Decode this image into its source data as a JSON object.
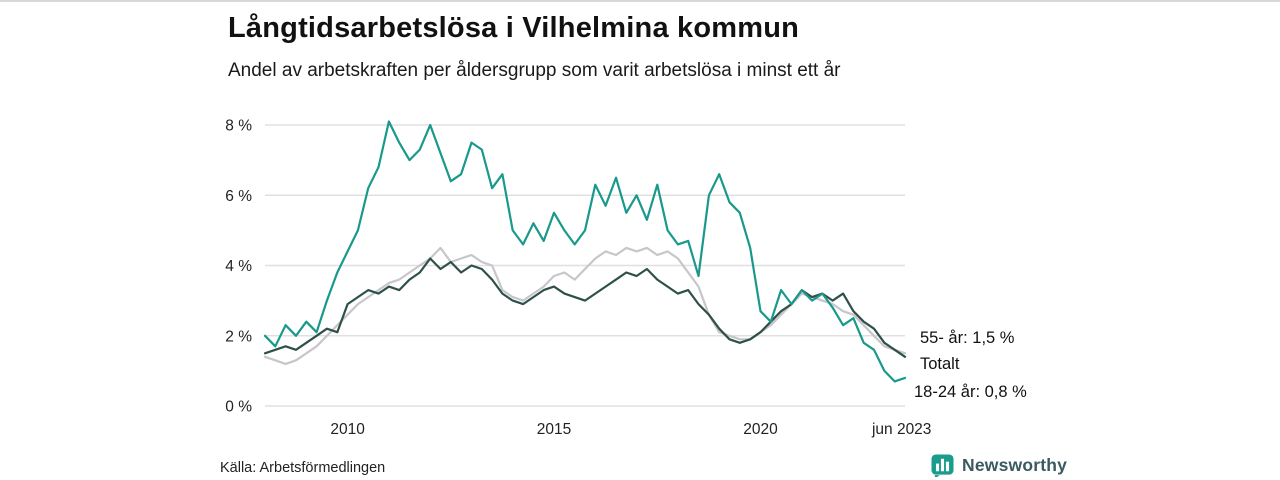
{
  "header": {
    "title": "Långtidsarbetslösa i Vilhelmina kommun",
    "subtitle": "Andel av arbetskraften per åldersgrupp som varit arbetslösa i minst ett år"
  },
  "footer": {
    "source": "Källa: Arbetsförmedlingen",
    "brand": "Newsworthy",
    "brand_color": "#1a9c8c",
    "brand_text_color": "#3b5a60"
  },
  "chart_data": {
    "type": "line",
    "title": "Långtidsarbetslösa i Vilhelmina kommun",
    "subtitle": "Andel av arbetskraften per åldersgrupp som varit arbetslösa i minst ett år",
    "xlabel": "",
    "ylabel": "",
    "xlim": [
      2008,
      2023.5
    ],
    "ylim": [
      0,
      8
    ],
    "grid": "horizontal",
    "legend_position": "end-of-line-labels",
    "yticks": [
      {
        "value": 0,
        "label": "0 %"
      },
      {
        "value": 2,
        "label": "2 %"
      },
      {
        "value": 4,
        "label": "4 %"
      },
      {
        "value": 6,
        "label": "6 %"
      },
      {
        "value": 8,
        "label": "8 %"
      }
    ],
    "xticks": [
      {
        "value": 2010,
        "label": "2010"
      },
      {
        "value": 2015,
        "label": "2015"
      },
      {
        "value": 2020,
        "label": "2020"
      },
      {
        "value": 2023.42,
        "label": "jun 2023"
      }
    ],
    "x": [
      2008,
      2008.25,
      2008.5,
      2008.75,
      2009,
      2009.25,
      2009.5,
      2009.75,
      2010,
      2010.25,
      2010.5,
      2010.75,
      2011,
      2011.25,
      2011.5,
      2011.75,
      2012,
      2012.25,
      2012.5,
      2012.75,
      2013,
      2013.25,
      2013.5,
      2013.75,
      2014,
      2014.25,
      2014.5,
      2014.75,
      2015,
      2015.25,
      2015.5,
      2015.75,
      2016,
      2016.25,
      2016.5,
      2016.75,
      2017,
      2017.25,
      2017.5,
      2017.75,
      2018,
      2018.25,
      2018.5,
      2018.75,
      2019,
      2019.25,
      2019.5,
      2019.75,
      2020,
      2020.25,
      2020.5,
      2020.75,
      2021,
      2021.25,
      2021.5,
      2021.75,
      2022,
      2022.25,
      2022.5,
      2022.75,
      2023,
      2023.25,
      2023.5
    ],
    "series": [
      {
        "name": "55- år",
        "color": "#c6c6cb",
        "end_value": "1,5 %",
        "values": [
          1.4,
          1.3,
          1.2,
          1.3,
          1.5,
          1.7,
          2.0,
          2.3,
          2.6,
          2.9,
          3.1,
          3.3,
          3.5,
          3.6,
          3.8,
          4.0,
          4.2,
          4.5,
          4.1,
          4.2,
          4.3,
          4.1,
          4.0,
          3.3,
          3.1,
          3.0,
          3.2,
          3.4,
          3.7,
          3.8,
          3.6,
          3.9,
          4.2,
          4.4,
          4.3,
          4.5,
          4.4,
          4.5,
          4.3,
          4.4,
          4.2,
          3.8,
          3.4,
          2.6,
          2.1,
          2.0,
          1.9,
          1.9,
          2.1,
          2.3,
          2.6,
          2.9,
          3.2,
          3.1,
          3.0,
          2.9,
          2.7,
          2.6,
          2.3,
          2.0,
          1.7,
          1.6,
          1.5
        ]
      },
      {
        "name": "Totalt",
        "color": "#2f5049",
        "end_value": "",
        "values": [
          1.5,
          1.6,
          1.7,
          1.6,
          1.8,
          2.0,
          2.2,
          2.1,
          2.9,
          3.1,
          3.3,
          3.2,
          3.4,
          3.3,
          3.6,
          3.8,
          4.2,
          3.9,
          4.1,
          3.8,
          4.0,
          3.9,
          3.6,
          3.2,
          3.0,
          2.9,
          3.1,
          3.3,
          3.4,
          3.2,
          3.1,
          3.0,
          3.2,
          3.4,
          3.6,
          3.8,
          3.7,
          3.9,
          3.6,
          3.4,
          3.2,
          3.3,
          2.9,
          2.6,
          2.2,
          1.9,
          1.8,
          1.9,
          2.1,
          2.4,
          2.7,
          2.9,
          3.3,
          3.1,
          3.2,
          3.0,
          3.2,
          2.7,
          2.4,
          2.2,
          1.8,
          1.6,
          1.4
        ]
      },
      {
        "name": "18-24 år",
        "color": "#18998b",
        "end_value": "0,8 %",
        "values": [
          2.0,
          1.7,
          2.3,
          2.0,
          2.4,
          2.1,
          3.0,
          3.8,
          4.4,
          5.0,
          6.2,
          6.8,
          8.1,
          7.5,
          7.0,
          7.3,
          8.0,
          7.2,
          6.4,
          6.6,
          7.5,
          7.3,
          6.2,
          6.6,
          5.0,
          4.6,
          5.2,
          4.7,
          5.5,
          5.0,
          4.6,
          5.0,
          6.3,
          5.7,
          6.5,
          5.5,
          6.0,
          5.3,
          6.3,
          5.0,
          4.6,
          4.7,
          3.7,
          6.0,
          6.6,
          5.8,
          5.5,
          4.5,
          2.7,
          2.4,
          3.3,
          2.9,
          3.3,
          3.0,
          3.2,
          2.8,
          2.3,
          2.5,
          1.8,
          1.6,
          1.0,
          0.7,
          0.8
        ]
      }
    ],
    "end_labels": [
      {
        "text": "55- år: 1,5 %"
      },
      {
        "text": "Totalt"
      },
      {
        "text": "18-24 år: 0,8 %"
      }
    ]
  }
}
